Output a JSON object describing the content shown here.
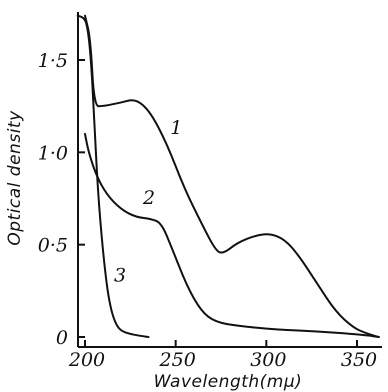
{
  "chart_data": {
    "type": "line",
    "xlabel": "Wavelength(mμ)",
    "ylabel": "Optical density",
    "xlim": [
      200,
      365
    ],
    "ylim": [
      0,
      1.78
    ],
    "x_ticks": [
      200,
      250,
      300,
      350
    ],
    "x_tick_labels": [
      "200",
      "250",
      "300",
      "350"
    ],
    "y_ticks": [
      0,
      0.5,
      1.0,
      1.5
    ],
    "y_tick_labels": [
      "0",
      "0·5",
      "1·0",
      "1·5"
    ],
    "grid": false,
    "series": [
      {
        "name": "1",
        "points": [
          [
            200,
            1.74
          ],
          [
            203,
            1.62
          ],
          [
            205,
            1.25
          ],
          [
            210,
            1.25
          ],
          [
            220,
            1.27
          ],
          [
            228,
            1.29
          ],
          [
            236,
            1.22
          ],
          [
            245,
            1.05
          ],
          [
            255,
            0.8
          ],
          [
            265,
            0.6
          ],
          [
            272,
            0.47
          ],
          [
            276,
            0.45
          ],
          [
            284,
            0.51
          ],
          [
            294,
            0.55
          ],
          [
            302,
            0.56
          ],
          [
            310,
            0.53
          ],
          [
            318,
            0.44
          ],
          [
            328,
            0.29
          ],
          [
            338,
            0.14
          ],
          [
            348,
            0.05
          ],
          [
            355,
            0.02
          ],
          [
            362,
            0.0
          ]
        ]
      },
      {
        "name": "2",
        "points": [
          [
            200,
            1.1
          ],
          [
            202,
            1.0
          ],
          [
            206,
            0.88
          ],
          [
            212,
            0.77
          ],
          [
            220,
            0.69
          ],
          [
            228,
            0.65
          ],
          [
            236,
            0.64
          ],
          [
            242,
            0.62
          ],
          [
            248,
            0.48
          ],
          [
            256,
            0.28
          ],
          [
            264,
            0.14
          ],
          [
            272,
            0.08
          ],
          [
            285,
            0.06
          ],
          [
            305,
            0.04
          ],
          [
            330,
            0.03
          ],
          [
            355,
            0.01
          ],
          [
            362,
            0.0
          ]
        ]
      },
      {
        "name": "3",
        "points": [
          [
            196,
            1.74
          ],
          [
            199,
            1.73
          ],
          [
            201,
            1.7
          ],
          [
            203,
            1.55
          ],
          [
            205,
            1.2
          ],
          [
            207,
            0.8
          ],
          [
            210,
            0.45
          ],
          [
            213,
            0.2
          ],
          [
            217,
            0.06
          ],
          [
            222,
            0.02
          ],
          [
            235,
            0.0
          ]
        ]
      }
    ],
    "labels": [
      {
        "text": "1",
        "x": 247,
        "y": 1.1
      },
      {
        "text": "2",
        "x": 232,
        "y": 0.72
      },
      {
        "text": "3",
        "x": 216,
        "y": 0.3
      }
    ]
  }
}
